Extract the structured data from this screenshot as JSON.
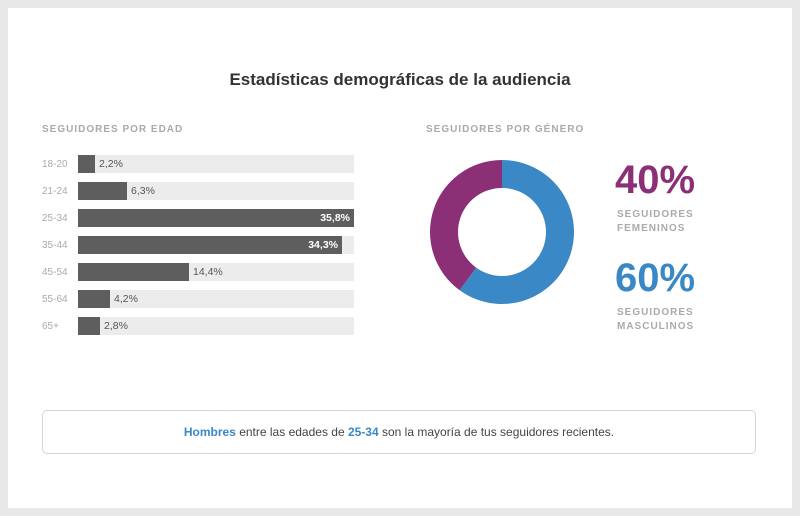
{
  "title": "Estadísticas demográficas de la audiencia",
  "age_section": {
    "label": "SEGUIDORES POR EDAD"
  },
  "gender_section": {
    "label": "SEGUIDORES POR GÉNERO",
    "female": {
      "percent": "40%",
      "desc_line1": "SEGUIDORES",
      "desc_line2": "FEMENINOS",
      "value": 40,
      "color": "#8b3077"
    },
    "male": {
      "percent": "60%",
      "desc_line1": "SEGUIDORES",
      "desc_line2": "MASCULINOS",
      "value": 60,
      "color": "#3a88c6"
    }
  },
  "chart_data": [
    {
      "type": "bar",
      "orientation": "horizontal",
      "title": "SEGUIDORES POR EDAD",
      "categories": [
        "18-20",
        "21-24",
        "25-34",
        "35-44",
        "45-54",
        "55-64",
        "65+"
      ],
      "values": [
        2.2,
        6.3,
        35.8,
        34.3,
        14.4,
        4.2,
        2.8
      ],
      "value_labels": [
        "2,2%",
        "6,3%",
        "35,8%",
        "34,3%",
        "14,4%",
        "4,2%",
        "2,8%"
      ],
      "xlim": [
        0,
        35.8
      ],
      "bar_color": "#5e5e5e",
      "track_color": "#ececec"
    },
    {
      "type": "pie",
      "style": "donut",
      "title": "SEGUIDORES POR GÉNERO",
      "labels": [
        "SEGUIDORES FEMENINOS",
        "SEGUIDORES MASCULINOS"
      ],
      "values": [
        40,
        60
      ],
      "colors": [
        "#8b3077",
        "#3a88c6"
      ]
    }
  ],
  "summary": {
    "highlight_gender": "Hombres",
    "text_middle": " entre las edades de ",
    "highlight_age": "25-34",
    "text_end": " son la mayoría de tus seguidores recientes."
  }
}
